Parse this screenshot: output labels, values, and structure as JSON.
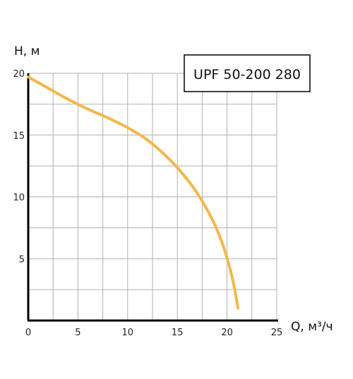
{
  "chart_data": {
    "type": "line",
    "title": "",
    "legend": "UPF 50-200 280",
    "ylabel": "H, м",
    "xlabel": "Q, м³/ч",
    "xlim": [
      0,
      25
    ],
    "ylim": [
      0,
      20
    ],
    "x_ticks": [
      "0",
      "5",
      "10",
      "15",
      "20",
      "25"
    ],
    "y_ticks": [
      "5",
      "10",
      "15",
      "20"
    ],
    "grid": true,
    "series": [
      {
        "color": "#f2b84b",
        "x": [
          0,
          2,
          4,
          6,
          8,
          10,
          12,
          14,
          15.5,
          17,
          18.5,
          19.5,
          20.2,
          20.7,
          21.1
        ],
        "y": [
          19.7,
          18.8,
          17.9,
          17.1,
          16.4,
          15.6,
          14.6,
          13.2,
          11.9,
          10.3,
          8.2,
          6.3,
          4.5,
          2.8,
          1.0
        ]
      }
    ]
  }
}
